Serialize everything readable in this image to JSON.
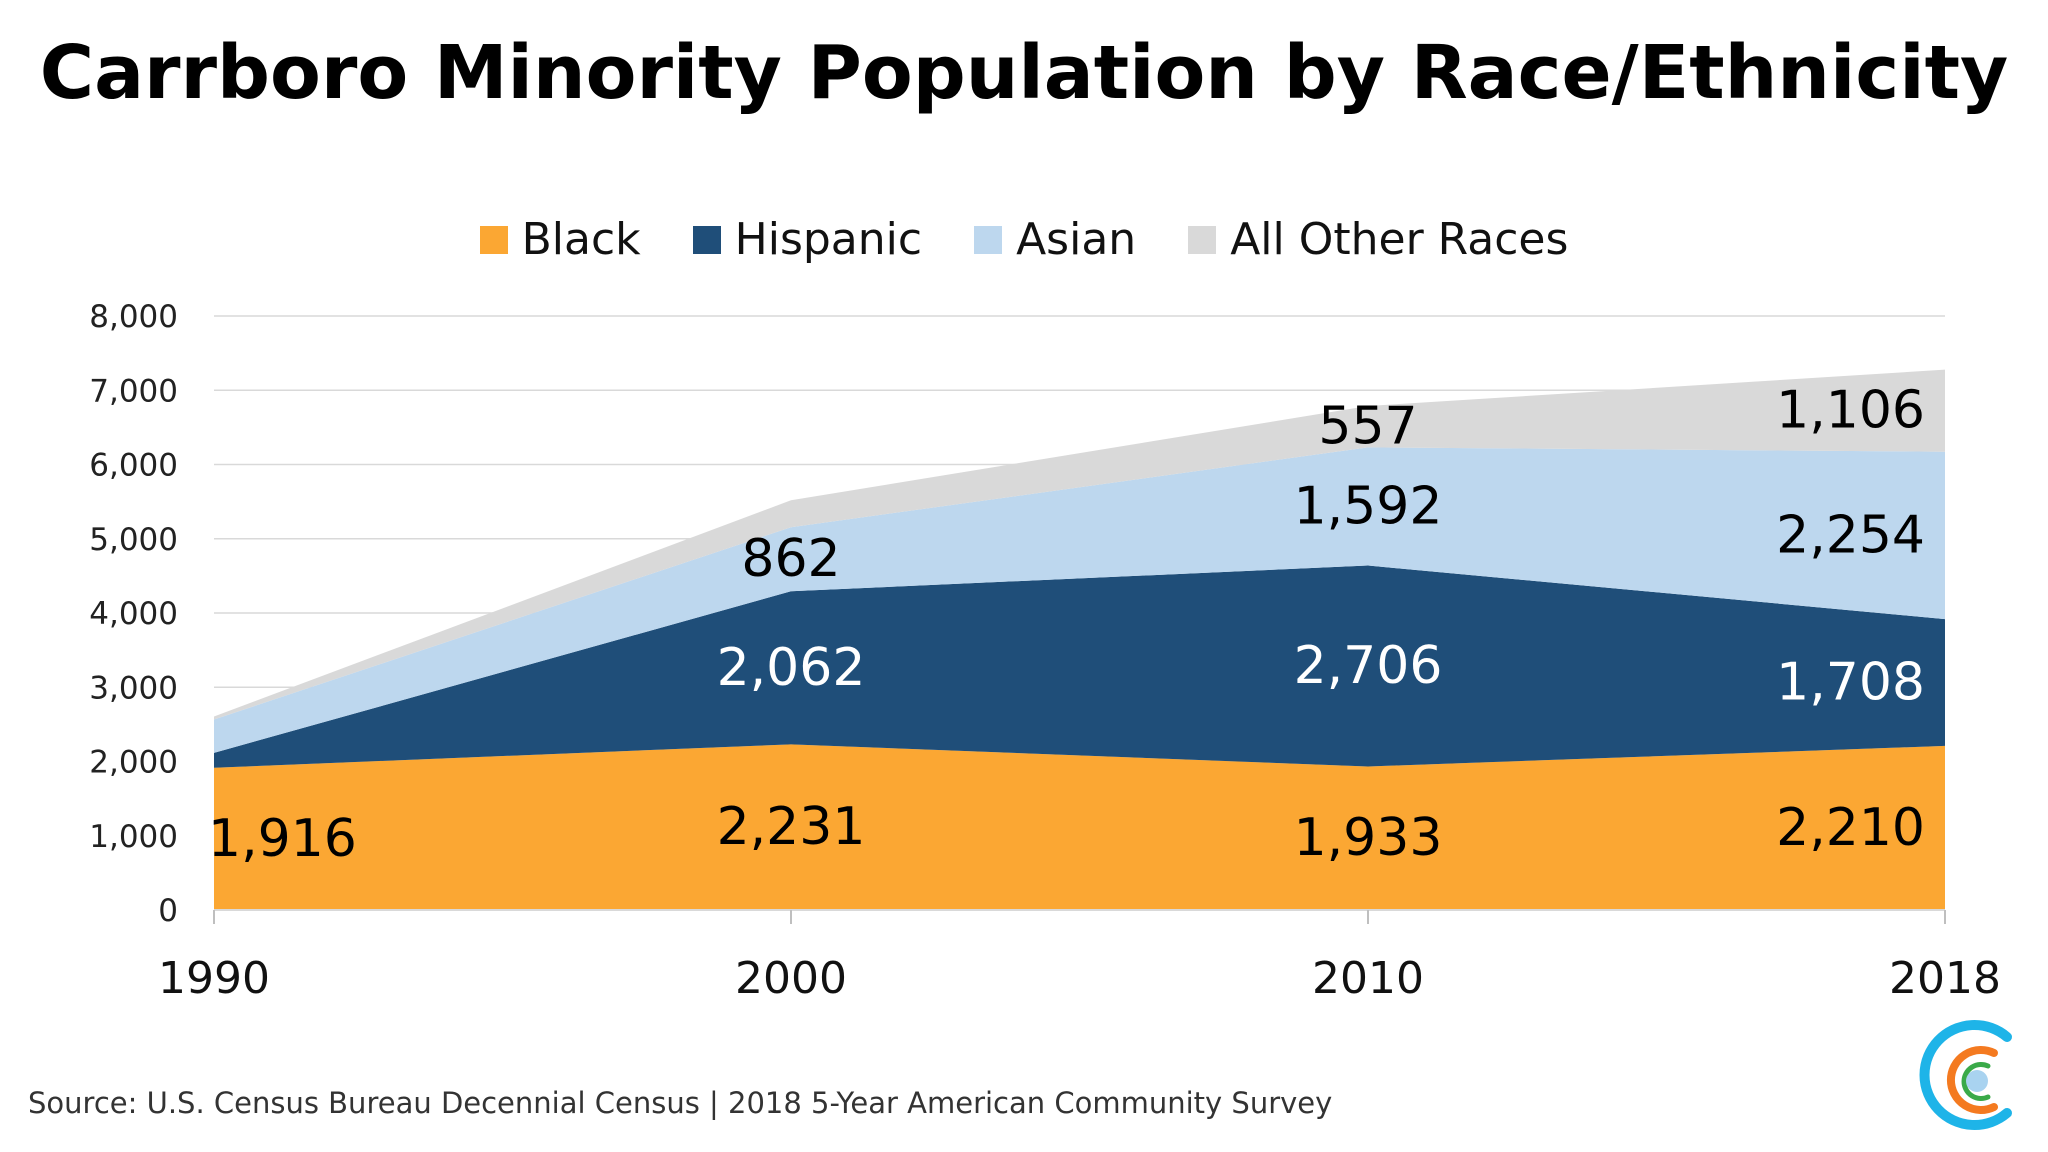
{
  "chart_data": {
    "type": "area",
    "stacked": true,
    "title": "Carrboro Minority Population by Race/Ethnicity",
    "categories": [
      "1990",
      "2000",
      "2010",
      "2018"
    ],
    "ylim": [
      0,
      8000
    ],
    "yticks": [
      0,
      1000,
      2000,
      3000,
      4000,
      5000,
      6000,
      7000,
      8000
    ],
    "ytick_labels": [
      "0",
      "1,000",
      "2,000",
      "3,000",
      "4,000",
      "5,000",
      "6,000",
      "7,000",
      "8,000"
    ],
    "grid": true,
    "legend_position": "top",
    "series": [
      {
        "name": "Black",
        "color": "#FBA733",
        "label_color": "#000000",
        "values": [
          1916,
          2231,
          1933,
          2210
        ],
        "labels": [
          "1,916",
          "2,231",
          "1,933",
          "2,210"
        ]
      },
      {
        "name": "Hispanic",
        "color": "#1F4E79",
        "label_color": "#FFFFFF",
        "values": [
          200,
          2062,
          2706,
          1708
        ],
        "labels": [
          null,
          "2,062",
          "2,706",
          "1,708"
        ]
      },
      {
        "name": "Asian",
        "color": "#BDD7EE",
        "label_color": "#000000",
        "values": [
          450,
          862,
          1592,
          2254
        ],
        "labels": [
          null,
          "862",
          "1,592",
          "2,254"
        ]
      },
      {
        "name": "All Other Races",
        "color": "#D9D9D9",
        "label_color": "#000000",
        "values": [
          40,
          363,
          557,
          1106
        ],
        "labels": [
          null,
          null,
          "557",
          "1,106"
        ]
      }
    ]
  },
  "source": "Source: U.S. Census Bureau Decennial Census | 2018 5-Year American Community Survey",
  "logo": {
    "icon": "concentric-c-logo",
    "colors": [
      "#1EB4E8",
      "#F47A20",
      "#3AAA49",
      "#A9D3F0"
    ]
  }
}
